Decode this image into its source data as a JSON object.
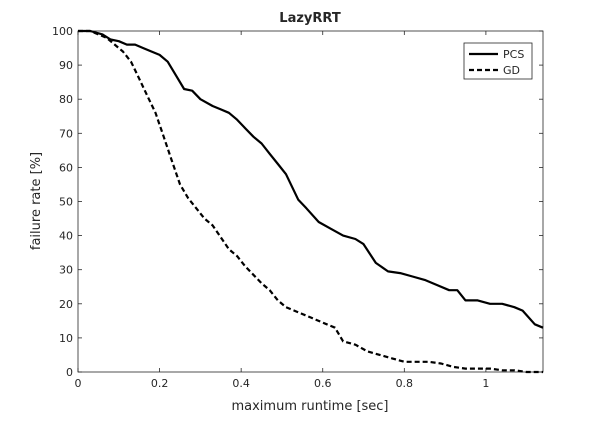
{
  "chart_data": {
    "type": "line",
    "title": "LazyRRT",
    "xlabel": "maximum runtime [sec]",
    "ylabel": "failure rate [%]",
    "xlim": [
      0,
      1.14
    ],
    "ylim": [
      0,
      100
    ],
    "xticks": [
      0,
      0.2,
      0.4,
      0.6,
      0.8,
      1
    ],
    "xtick_labels": [
      "0",
      "0.2",
      "0.4",
      "0.6",
      "0.8",
      "1"
    ],
    "yticks": [
      0,
      10,
      20,
      30,
      40,
      50,
      60,
      70,
      80,
      90,
      100
    ],
    "ytick_labels": [
      "0",
      "10",
      "20",
      "30",
      "40",
      "50",
      "60",
      "70",
      "80",
      "90",
      "100"
    ],
    "grid": false,
    "legend_position": "top-right",
    "series": [
      {
        "name": "PCS",
        "style": "solid",
        "color": "#000000",
        "x": [
          0,
          0.03,
          0.06,
          0.08,
          0.1,
          0.12,
          0.14,
          0.16,
          0.18,
          0.2,
          0.22,
          0.24,
          0.26,
          0.28,
          0.3,
          0.33,
          0.35,
          0.37,
          0.39,
          0.41,
          0.43,
          0.45,
          0.47,
          0.49,
          0.51,
          0.54,
          0.56,
          0.59,
          0.62,
          0.65,
          0.68,
          0.7,
          0.73,
          0.76,
          0.79,
          0.82,
          0.85,
          0.88,
          0.91,
          0.93,
          0.95,
          0.98,
          1.01,
          1.04,
          1.07,
          1.09,
          1.12,
          1.14
        ],
        "y": [
          100,
          100,
          99,
          97.5,
          97,
          96,
          96,
          95,
          94,
          93,
          91,
          87,
          83,
          82.5,
          80,
          78,
          77,
          76,
          74,
          71.5,
          69,
          67,
          64,
          61,
          58,
          50.5,
          48,
          44,
          42,
          40,
          39,
          37.5,
          32,
          29.5,
          29,
          28,
          27,
          25.5,
          24,
          24,
          21,
          21,
          20,
          20,
          19,
          18,
          14,
          13
        ]
      },
      {
        "name": "GD",
        "style": "dashed",
        "color": "#000000",
        "x": [
          0,
          0.03,
          0.05,
          0.07,
          0.09,
          0.11,
          0.13,
          0.15,
          0.17,
          0.19,
          0.21,
          0.23,
          0.25,
          0.27,
          0.29,
          0.31,
          0.33,
          0.35,
          0.37,
          0.39,
          0.41,
          0.43,
          0.45,
          0.47,
          0.49,
          0.51,
          0.53,
          0.55,
          0.57,
          0.59,
          0.61,
          0.63,
          0.65,
          0.68,
          0.71,
          0.74,
          0.77,
          0.8,
          0.83,
          0.86,
          0.89,
          0.92,
          0.95,
          0.98,
          1.01,
          1.04,
          1.07,
          1.1,
          1.14
        ],
        "y": [
          100,
          100,
          99,
          98,
          96,
          94,
          91,
          86,
          81,
          76,
          69,
          62,
          55,
          51,
          48,
          45,
          43,
          39.5,
          36,
          34,
          31,
          28.5,
          26,
          24,
          21,
          19,
          18,
          17,
          16,
          15,
          14,
          13,
          9,
          8,
          6,
          5,
          4,
          3,
          3,
          3,
          2.5,
          1.5,
          1,
          1,
          1,
          0.5,
          0.5,
          0,
          0
        ]
      }
    ]
  }
}
